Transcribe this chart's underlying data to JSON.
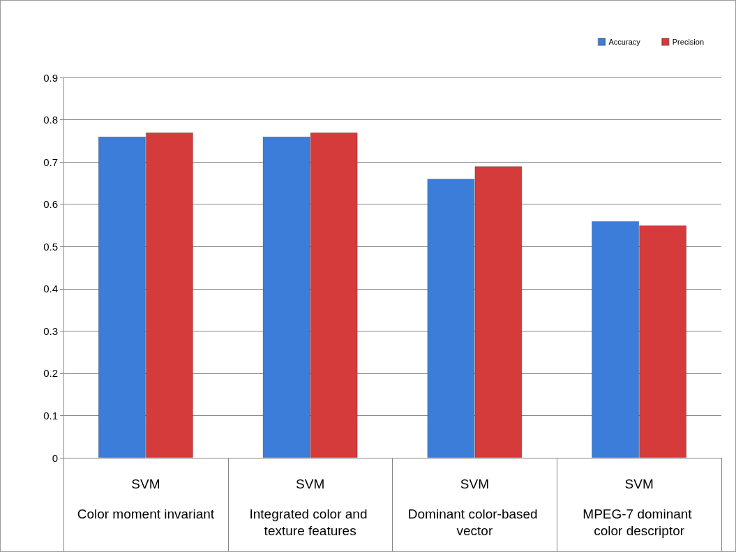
{
  "chart_data": {
    "type": "bar",
    "categories": [
      "Color moment invariant",
      "Integrated color and texture features",
      "Dominant color-based vector",
      "MPEG-7 dominant color descriptor"
    ],
    "series": [
      {
        "name": "Accuracy",
        "color": "#3b7dd8",
        "values": [
          0.76,
          0.76,
          0.66,
          0.56
        ]
      },
      {
        "name": "Precision",
        "color": "#d63b3b",
        "values": [
          0.77,
          0.77,
          0.69,
          0.55
        ]
      }
    ],
    "ylim": [
      0,
      0.9
    ],
    "yticks": [
      0,
      0.1,
      0.2,
      0.3,
      0.4,
      0.5,
      0.6,
      0.7,
      0.8,
      0.9
    ],
    "grid": "y",
    "legend": "top right",
    "annotations": [
      "SVM",
      "SVM",
      "SVM",
      "SVM"
    ]
  }
}
